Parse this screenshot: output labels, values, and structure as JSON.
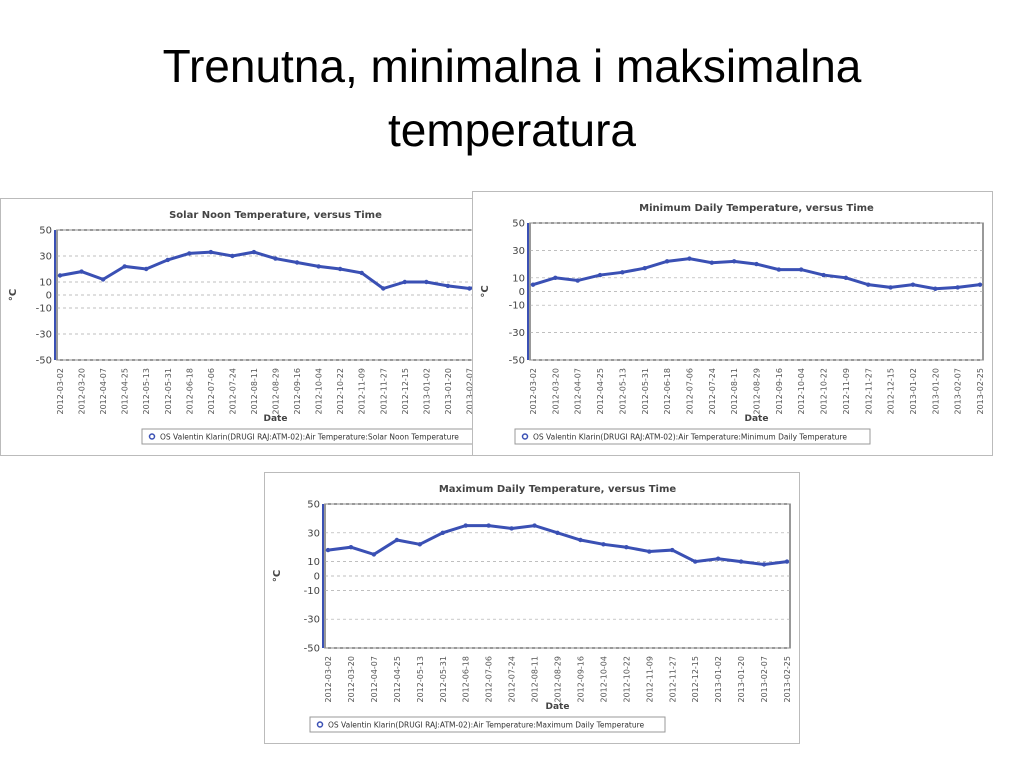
{
  "title": "Trenutna, minimalna i maksimalna temperatura",
  "chart_data": [
    {
      "type": "line",
      "title": "Solar Noon Temperature, versus Time",
      "x_label": "Date",
      "y_label": "°C",
      "categories": [
        "2012-03-02",
        "2012-03-20",
        "2012-04-07",
        "2012-04-25",
        "2012-05-13",
        "2012-05-31",
        "2012-06-18",
        "2012-07-06",
        "2012-07-24",
        "2012-08-11",
        "2012-08-29",
        "2012-09-16",
        "2012-10-04",
        "2012-10-22",
        "2012-11-09",
        "2012-11-27",
        "2012-12-15",
        "2013-01-02",
        "2013-01-20",
        "2013-02-07",
        "2013-02-25"
      ],
      "series": [
        {
          "name": "OS Valentin Klarin(DRUGI RAJ:ATM-02):Air Temperature:Solar Noon Temperature",
          "color": "#3a50b4",
          "values": [
            15,
            18,
            12,
            22,
            20,
            27,
            32,
            33,
            30,
            33,
            28,
            25,
            22,
            20,
            17,
            5,
            10,
            10,
            7,
            5,
            8
          ]
        }
      ],
      "ylim": [
        -50,
        50
      ],
      "yticks": [
        50,
        30,
        10,
        0,
        -10,
        -30,
        -50
      ],
      "grid": true
    },
    {
      "type": "line",
      "title": "Minimum Daily Temperature, versus Time",
      "x_label": "Date",
      "y_label": "°C",
      "categories": [
        "2012-03-02",
        "2012-03-20",
        "2012-04-07",
        "2012-04-25",
        "2012-05-13",
        "2012-05-31",
        "2012-06-18",
        "2012-07-06",
        "2012-07-24",
        "2012-08-11",
        "2012-08-29",
        "2012-09-16",
        "2012-10-04",
        "2012-10-22",
        "2012-11-09",
        "2012-11-27",
        "2012-12-15",
        "2013-01-02",
        "2013-01-20",
        "2013-02-07",
        "2013-02-25"
      ],
      "series": [
        {
          "name": "OS Valentin Klarin(DRUGI RAJ:ATM-02):Air Temperature:Minimum Daily Temperature",
          "color": "#3a50b4",
          "values": [
            5,
            10,
            8,
            12,
            14,
            17,
            22,
            24,
            21,
            22,
            20,
            16,
            16,
            12,
            10,
            5,
            3,
            5,
            2,
            3,
            5
          ]
        }
      ],
      "ylim": [
        -50,
        50
      ],
      "yticks": [
        50,
        30,
        10,
        0,
        -10,
        -30,
        -50
      ],
      "grid": true
    },
    {
      "type": "line",
      "title": "Maximum Daily Temperature, versus Time",
      "x_label": "Date",
      "y_label": "°C",
      "categories": [
        "2012-03-02",
        "2012-03-20",
        "2012-04-07",
        "2012-04-25",
        "2012-05-13",
        "2012-05-31",
        "2012-06-18",
        "2012-07-06",
        "2012-07-24",
        "2012-08-11",
        "2012-08-29",
        "2012-09-16",
        "2012-10-04",
        "2012-10-22",
        "2012-11-09",
        "2012-11-27",
        "2012-12-15",
        "2013-01-02",
        "2013-01-20",
        "2013-02-07",
        "2013-02-25"
      ],
      "series": [
        {
          "name": "OS Valentin Klarin(DRUGI RAJ:ATM-02):Air Temperature:Maximum Daily Temperature",
          "color": "#3a50b4",
          "values": [
            18,
            20,
            15,
            25,
            22,
            30,
            35,
            35,
            33,
            35,
            30,
            25,
            22,
            20,
            17,
            18,
            10,
            12,
            10,
            8,
            10
          ]
        }
      ],
      "ylim": [
        -50,
        50
      ],
      "yticks": [
        50,
        30,
        10,
        0,
        -10,
        -30,
        -50
      ],
      "grid": true
    }
  ]
}
